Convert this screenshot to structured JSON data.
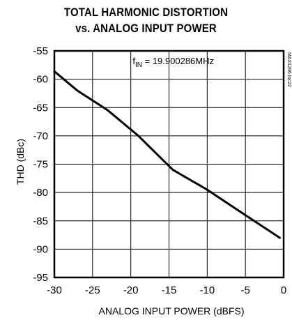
{
  "chart_data": {
    "type": "line",
    "title": "TOTAL HARMONIC DISTORTION",
    "subtitle": "vs. ANALOG INPUT POWER",
    "xlabel": "ANALOG INPUT POWER (dBFS)",
    "ylabel": "THD (dBc)",
    "xlim": [
      -30,
      0
    ],
    "ylim": [
      -95,
      -55
    ],
    "xticks": [
      -30,
      -25,
      -20,
      -15,
      -10,
      -5,
      0
    ],
    "yticks": [
      -55,
      -60,
      -65,
      -70,
      -75,
      -80,
      -85,
      -90,
      -95
    ],
    "grid": true,
    "annotation": {
      "prefix": "f",
      "subscript": "IN",
      "text": " = 19.900286MHz"
    },
    "watermark": "MAX1206 toc22",
    "series": [
      {
        "x": [
          -30,
          -27,
          -23,
          -19,
          -14.5,
          -10,
          -5,
          -0.5
        ],
        "values": [
          -58.6,
          -62.0,
          -65.5,
          -70.0,
          -76.0,
          -79.5,
          -84.0,
          -88.0
        ]
      }
    ]
  }
}
